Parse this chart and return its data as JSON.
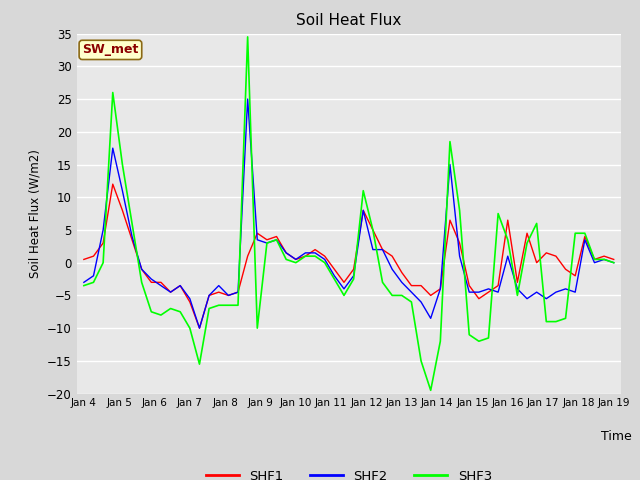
{
  "title": "Soil Heat Flux",
  "ylabel": "Soil Heat Flux (W/m2)",
  "xlabel": "Time",
  "ylim": [
    -20,
    35
  ],
  "bg_color": "#d8d8d8",
  "plot_bg_color": "#e8e8e8",
  "grid_color": "white",
  "annotation_text": "SW_met",
  "annotation_bg": "#ffffcc",
  "annotation_fg": "#8b0000",
  "series_colors": [
    "red",
    "blue",
    "lime"
  ],
  "series_labels": [
    "SHF1",
    "SHF2",
    "SHF3"
  ],
  "x_tick_labels": [
    "Jan 4",
    "Jan 5",
    "Jan 6",
    "Jan 7",
    "Jan 8",
    "Jan 9",
    "Jan 10",
    "Jan 11",
    "Jan 12",
    "Jan 13",
    "Jan 14",
    "Jan 15",
    "Jan 16",
    "Jan 17",
    "Jan 18",
    "Jan 19"
  ],
  "shf1": [
    0.5,
    1.0,
    3.0,
    12.0,
    8.0,
    3.5,
    -1.0,
    -3.0,
    -3.0,
    -4.5,
    -3.5,
    -6.0,
    -10.0,
    -5.0,
    -4.5,
    -5.0,
    -4.5,
    1.0,
    4.5,
    3.5,
    4.0,
    1.5,
    0.5,
    1.0,
    2.0,
    1.0,
    -1.0,
    -3.0,
    -1.0,
    8.0,
    5.0,
    2.0,
    1.0,
    -1.5,
    -3.5,
    -3.5,
    -5.0,
    -4.0,
    6.5,
    3.0,
    -3.5,
    -5.5,
    -4.5,
    -3.5,
    6.5,
    -3.0,
    4.5,
    0.0,
    1.5,
    1.0,
    -1.0,
    -2.0,
    4.0,
    0.5,
    1.0,
    0.5
  ],
  "shf2": [
    -3.0,
    -2.0,
    5.0,
    17.5,
    11.0,
    4.0,
    -1.0,
    -2.5,
    -3.5,
    -4.5,
    -3.5,
    -5.5,
    -10.0,
    -5.0,
    -3.5,
    -5.0,
    -4.5,
    25.0,
    3.5,
    3.0,
    3.5,
    1.5,
    0.5,
    1.5,
    1.5,
    0.5,
    -2.0,
    -4.0,
    -2.0,
    8.0,
    2.0,
    2.0,
    -1.0,
    -3.0,
    -4.5,
    -6.0,
    -8.5,
    -4.0,
    15.0,
    1.0,
    -4.5,
    -4.5,
    -4.0,
    -4.5,
    1.0,
    -4.0,
    -5.5,
    -4.5,
    -5.5,
    -4.5,
    -4.0,
    -4.5,
    3.5,
    0.0,
    0.5,
    0.0
  ],
  "shf3": [
    -3.5,
    -3.0,
    0.0,
    26.0,
    15.0,
    6.0,
    -3.0,
    -7.5,
    -8.0,
    -7.0,
    -7.5,
    -10.0,
    -15.5,
    -7.0,
    -6.5,
    -6.5,
    -6.5,
    34.5,
    -10.0,
    3.0,
    3.5,
    0.5,
    0.0,
    1.0,
    1.0,
    0.0,
    -2.5,
    -5.0,
    -2.5,
    11.0,
    5.0,
    -3.0,
    -5.0,
    -5.0,
    -6.0,
    -15.0,
    -19.5,
    -12.0,
    18.5,
    8.0,
    -11.0,
    -12.0,
    -11.5,
    7.5,
    3.5,
    -5.0,
    3.0,
    6.0,
    -9.0,
    -9.0,
    -8.5,
    4.5,
    4.5,
    0.5,
    0.5,
    0.0
  ]
}
